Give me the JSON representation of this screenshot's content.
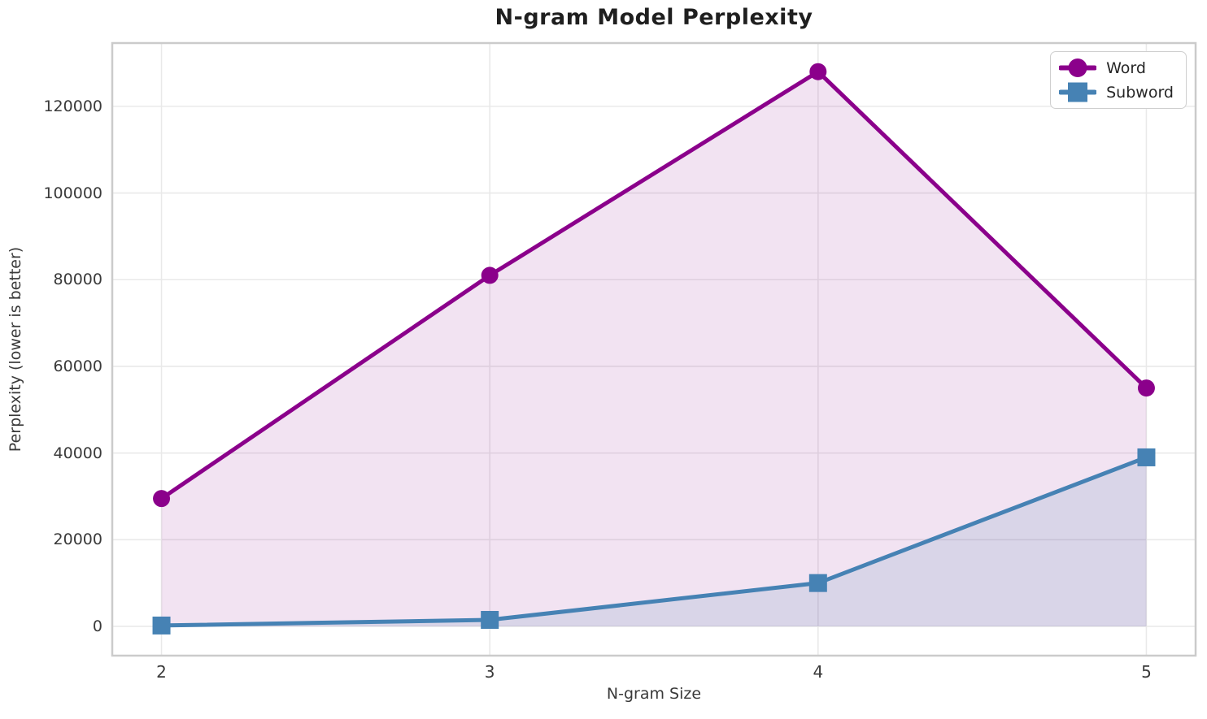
{
  "chart_data": {
    "type": "line",
    "title": "N-gram Model Perplexity",
    "xlabel": "N-gram Size",
    "ylabel": "Perplexity (lower is better)",
    "x": [
      2,
      3,
      4,
      5
    ],
    "series": [
      {
        "name": "Word",
        "marker": "circle",
        "color": "#8B008B",
        "fill_alpha": 0.11,
        "values": [
          29500,
          81000,
          128000,
          55000
        ]
      },
      {
        "name": "Subword",
        "marker": "square",
        "color": "#4682B4",
        "fill_alpha": 0.14,
        "values": [
          200,
          1500,
          10000,
          39000
        ]
      }
    ],
    "xticks": [
      "2",
      "3",
      "4",
      "5"
    ],
    "yticks": [
      0,
      20000,
      40000,
      60000,
      80000,
      100000,
      120000
    ],
    "xlim": [
      1.85,
      5.15
    ],
    "ylim": [
      -6750,
      134600
    ],
    "grid": true,
    "area_fill_to": 0,
    "legend": {
      "position": "upper right",
      "entries": [
        "Word",
        "Subword"
      ]
    },
    "grid_color": "#e9e9e9",
    "spine_color": "#cbcbcb",
    "title_color": "#1f1f1f",
    "tick_color": "#3a3a3a"
  }
}
